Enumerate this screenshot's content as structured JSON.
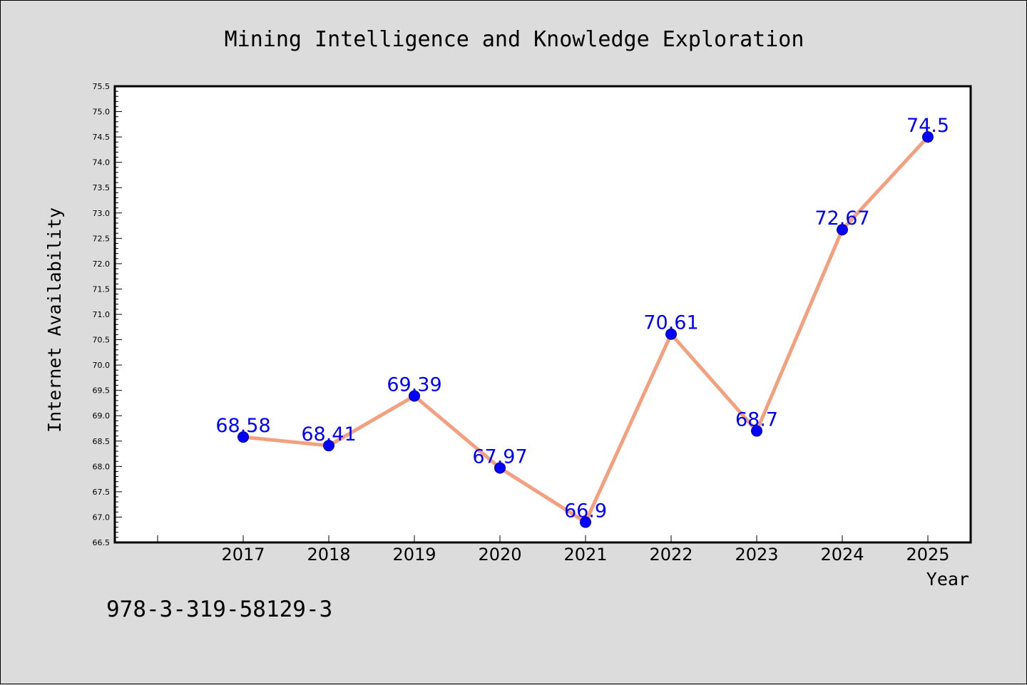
{
  "chart_data": {
    "type": "line",
    "title": "Mining Intelligence and Knowledge Exploration",
    "xlabel": "Year",
    "ylabel": "Internet Availability",
    "categories": [
      "2017",
      "2018",
      "2019",
      "2020",
      "2021",
      "2022",
      "2023",
      "2024",
      "2025"
    ],
    "series": [
      {
        "values": [
          68.58,
          68.41,
          69.39,
          67.97,
          66.9,
          70.61,
          68.7,
          72.67,
          74.5
        ],
        "labels": [
          "68.58",
          "68.41",
          "69.39",
          "67.97",
          "66.9",
          "70.61",
          "68.7",
          "72.67",
          "74.5"
        ]
      }
    ],
    "ylim": [
      66.5,
      75.5
    ],
    "yticks": [
      "66.5",
      "67.0",
      "67.5",
      "68.0",
      "68.5",
      "69.0",
      "69.5",
      "70.0",
      "70.5",
      "71.0",
      "71.5",
      "72.0",
      "72.5",
      "73.0",
      "73.5",
      "74.0",
      "74.5",
      "75.0",
      "75.5"
    ],
    "grid": false,
    "legend": "none",
    "colors": {
      "line": "#f4a07f",
      "marker": "#0000ff",
      "marker_edge": "#00008b",
      "data_label": "#0000ff",
      "plot_background": "#ffffff",
      "figure_background": "#dcdcdc"
    }
  },
  "footnote": "978-3-319-58129-3"
}
